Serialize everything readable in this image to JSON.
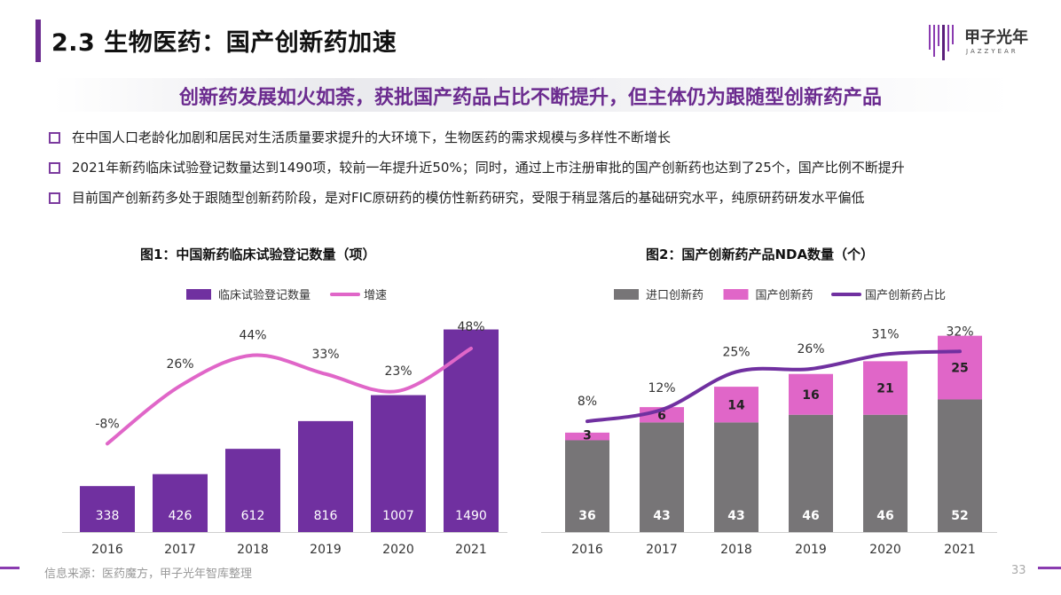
{
  "header": {
    "title": "2.3 生物医药：国产创新药加速",
    "logo_text": "甲子光年",
    "logo_sub": "JAZZYEAR"
  },
  "subtitle": "创新药发展如火如荼，获批国产药品占比不断提升，但主体仍为跟随型创新药产品",
  "bullets": [
    "在中国人口老龄化加剧和居民对生活质量要求提升的大环境下，生物医药的需求规模与多样性不断增长",
    "2021年新药临床试验登记数量达到1490项，较前一年提升近50%；同时，通过上市注册审批的国产创新药也达到了25个，国产比例不断提升",
    "目前国产创新药多处于跟随型创新药阶段，是对FIC原研药的模仿性新药研究，受限于稍显落后的基础研究水平，纯原研药研发水平偏低"
  ],
  "chart_data": [
    {
      "type": "bar",
      "title": "图1：中国新药临床试验登记数量（项）",
      "categories": [
        "2016",
        "2017",
        "2018",
        "2019",
        "2020",
        "2021"
      ],
      "series": [
        {
          "name": "临床试验登记数量",
          "type": "bar",
          "values": [
            338,
            426,
            612,
            816,
            1007,
            1490
          ],
          "color": "#7030a0"
        },
        {
          "name": "增速",
          "type": "line",
          "values": [
            -8,
            26,
            44,
            33,
            23,
            48
          ],
          "labels": [
            "-8%",
            "26%",
            "44%",
            "33%",
            "23%",
            "48%"
          ],
          "color": "#e066c8"
        }
      ],
      "ylim": [
        0,
        1500
      ],
      "y2lim": [
        -60,
        60
      ],
      "legend": "top"
    },
    {
      "type": "bar",
      "title": "图2：国产创新药产品NDA数量（个）",
      "categories": [
        "2016",
        "2017",
        "2018",
        "2019",
        "2020",
        "2021"
      ],
      "series": [
        {
          "name": "进口创新药",
          "type": "bar",
          "stack": "a",
          "values": [
            36,
            43,
            43,
            46,
            46,
            52
          ],
          "color": "#777577"
        },
        {
          "name": "国产创新药",
          "type": "bar",
          "stack": "a",
          "values": [
            3,
            6,
            14,
            16,
            21,
            25
          ],
          "color": "#e066c8"
        },
        {
          "name": "国产创新药占比",
          "type": "line",
          "values": [
            8,
            12,
            25,
            26,
            31,
            32
          ],
          "labels": [
            "8%",
            "12%",
            "25%",
            "26%",
            "31%",
            "32%"
          ],
          "color": "#7030a0"
        }
      ],
      "ylim": [
        0,
        80
      ],
      "y2lim": [
        -30,
        40
      ],
      "legend": "top"
    }
  ],
  "footer": {
    "source": "信息来源：医药魔方，甲子光年智库整理",
    "page": "33"
  }
}
